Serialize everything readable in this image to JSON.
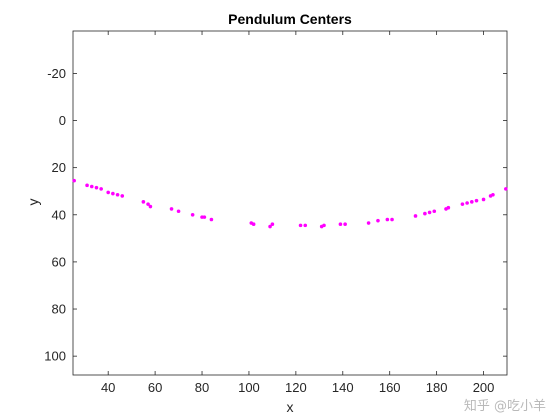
{
  "chart_data": {
    "type": "scatter",
    "title": "Pendulum Centers",
    "xlabel": "x",
    "ylabel": "y",
    "xlim": [
      25,
      210
    ],
    "ylim": [
      -38,
      108
    ],
    "y_reversed": true,
    "xticks": [
      40,
      60,
      80,
      100,
      120,
      140,
      160,
      180,
      200
    ],
    "yticks": [
      -20,
      0,
      20,
      40,
      60,
      80,
      100
    ],
    "grid": false,
    "marker_color": "#ff00ff",
    "series": [
      {
        "x": [
          25.5,
          31,
          33,
          35,
          37,
          40,
          42,
          44,
          46,
          55,
          57,
          58,
          67,
          70,
          76,
          80,
          81,
          84,
          101,
          102,
          109,
          110,
          122,
          124,
          131,
          132,
          139,
          141,
          151,
          155,
          159,
          161,
          171,
          175,
          177,
          179,
          184,
          185,
          191,
          193,
          195,
          197,
          200,
          203,
          204,
          209.5
        ],
        "y": [
          25.5,
          27.5,
          28,
          28.5,
          29,
          30.5,
          31,
          31.5,
          32,
          34.5,
          35.5,
          36.5,
          37.5,
          38.5,
          40,
          41,
          41,
          42,
          43.5,
          44,
          45,
          44,
          44.5,
          44.5,
          45,
          44.5,
          44,
          44,
          43.5,
          42.5,
          42,
          42,
          40.5,
          39.5,
          39,
          38.5,
          37.5,
          37,
          35.5,
          35,
          34.5,
          34,
          33.5,
          32,
          31.5,
          29
        ]
      }
    ]
  },
  "watermark": "知乎 @吃小羊"
}
